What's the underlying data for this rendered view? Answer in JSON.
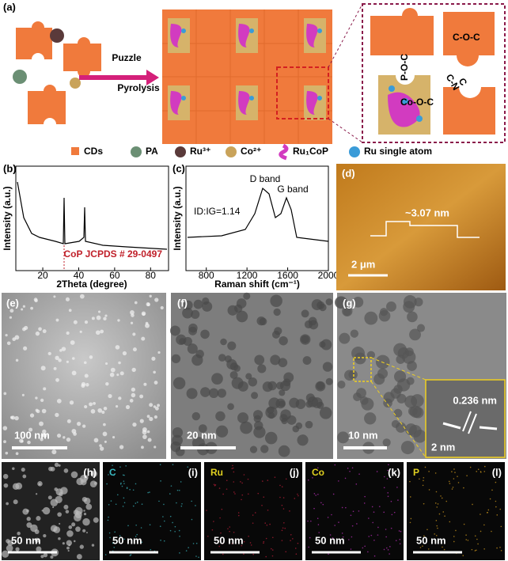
{
  "panels": {
    "a": {
      "label": "(a)",
      "arrow_top": "Puzzle",
      "arrow_bottom": "Pyrolysis",
      "bonds": [
        "C-O-C",
        "P-O-C",
        "C-N",
        "C",
        "Co-O-C"
      ],
      "legend": [
        "CDs",
        "PA",
        "Ru³⁺",
        "Co²⁺",
        "Ru₁CoP",
        "Ru single atom"
      ]
    },
    "b": {
      "label": "(b)",
      "y_label": "Intensity (a.u.)",
      "x_label": "2Theta (degree)",
      "xlim": [
        5,
        90
      ],
      "xticks": [
        20,
        40,
        60,
        80
      ],
      "annotation": "CoP JCPDS # 29-0497"
    },
    "c": {
      "label": "(c)",
      "y_label": "Intensity (a.u.)",
      "x_label": "Raman shift (cm⁻¹)",
      "xlim": [
        600,
        2000
      ],
      "xticks": [
        800,
        1200,
        1600,
        2000
      ],
      "d_band": "D band",
      "g_band": "G band",
      "ratio": "ID:IG=1.14"
    },
    "d": {
      "label": "(d)",
      "height": "~3.07 nm",
      "scale": "2 μm"
    },
    "e": {
      "label": "(e)",
      "scale": "100 nm"
    },
    "f": {
      "label": "(f)",
      "scale": "20 nm"
    },
    "g": {
      "label": "(g)",
      "scale": "10 nm",
      "spacing": "0.236 nm",
      "inset_scale": "2 nm"
    },
    "h": {
      "label": "(h)",
      "scale": "50 nm"
    },
    "i": {
      "label": "(i)",
      "element": "C",
      "scale": "50 nm"
    },
    "j": {
      "label": "(j)",
      "element": "Ru",
      "scale": "50 nm"
    },
    "k": {
      "label": "(k)",
      "element": "Co",
      "scale": "50 nm"
    },
    "l": {
      "label": "(l)",
      "element": "P",
      "scale": "50 nm"
    }
  }
}
